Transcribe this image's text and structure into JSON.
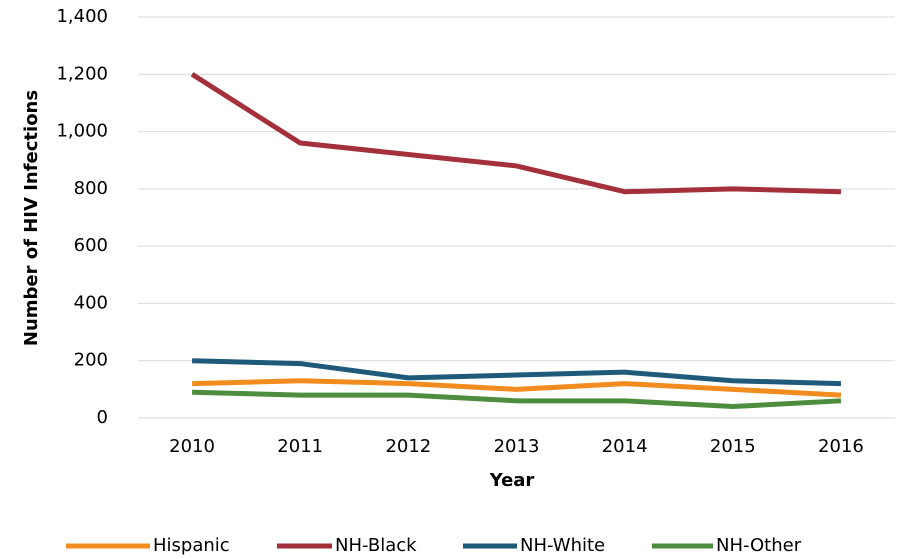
{
  "chart_data": {
    "type": "line",
    "x_label": "Year",
    "y_label": "Number of HIV Infections",
    "categories": [
      "2010",
      "2011",
      "2012",
      "2013",
      "2014",
      "2015",
      "2016"
    ],
    "series": [
      {
        "name": "Hispanic",
        "color": "#f28c1e",
        "values": [
          120,
          130,
          120,
          100,
          120,
          100,
          80
        ]
      },
      {
        "name": "NH-Black",
        "color": "#a3303a",
        "values": [
          1200,
          960,
          920,
          880,
          790,
          800,
          790
        ]
      },
      {
        "name": "NH-White",
        "color": "#1f5a7a",
        "values": [
          200,
          190,
          140,
          150,
          160,
          130,
          120
        ]
      },
      {
        "name": "NH-Other",
        "color": "#4e8c3e",
        "values": [
          90,
          80,
          80,
          60,
          60,
          40,
          60
        ]
      }
    ],
    "ylim": [
      0,
      1400
    ],
    "yticks": [
      0,
      200,
      400,
      600,
      800,
      {
        "value": 1000,
        "label": "1,000"
      },
      {
        "value": 1200,
        "label": "1,200"
      },
      {
        "value": 1400,
        "label": "1,400"
      }
    ],
    "grid": true,
    "legend": "bottom"
  }
}
